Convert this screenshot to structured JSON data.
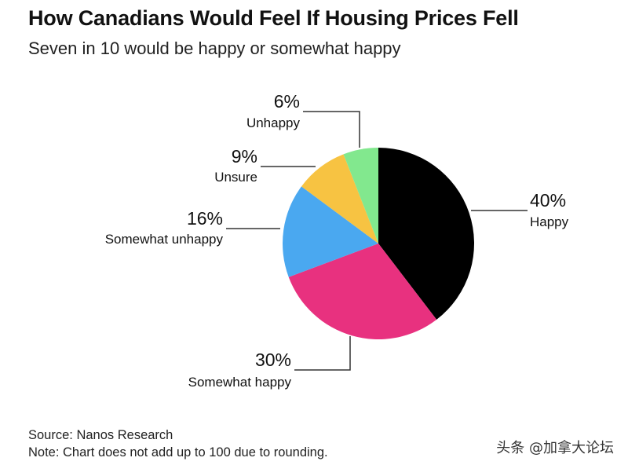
{
  "title": "How Canadians Would Feel If Housing Prices Fell",
  "subtitle": "Seven in 10 would be happy or somewhat happy",
  "source": "Source: Nanos Research",
  "note": "Note: Chart does not add up to 100 due to rounding.",
  "watermark": "头条 @加拿大论坛",
  "chart_data": {
    "type": "pie",
    "categories": [
      "Happy",
      "Somewhat happy",
      "Somewhat unhappy",
      "Unsure",
      "Unhappy"
    ],
    "values": [
      40,
      30,
      16,
      9,
      6
    ],
    "value_labels": [
      "40%",
      "30%",
      "16%",
      "9%",
      "6%"
    ],
    "colors": [
      "#000000",
      "#e8317f",
      "#4aa8f0",
      "#f7c342",
      "#82e88e"
    ],
    "start": "12 o'clock",
    "direction": "clockwise"
  }
}
